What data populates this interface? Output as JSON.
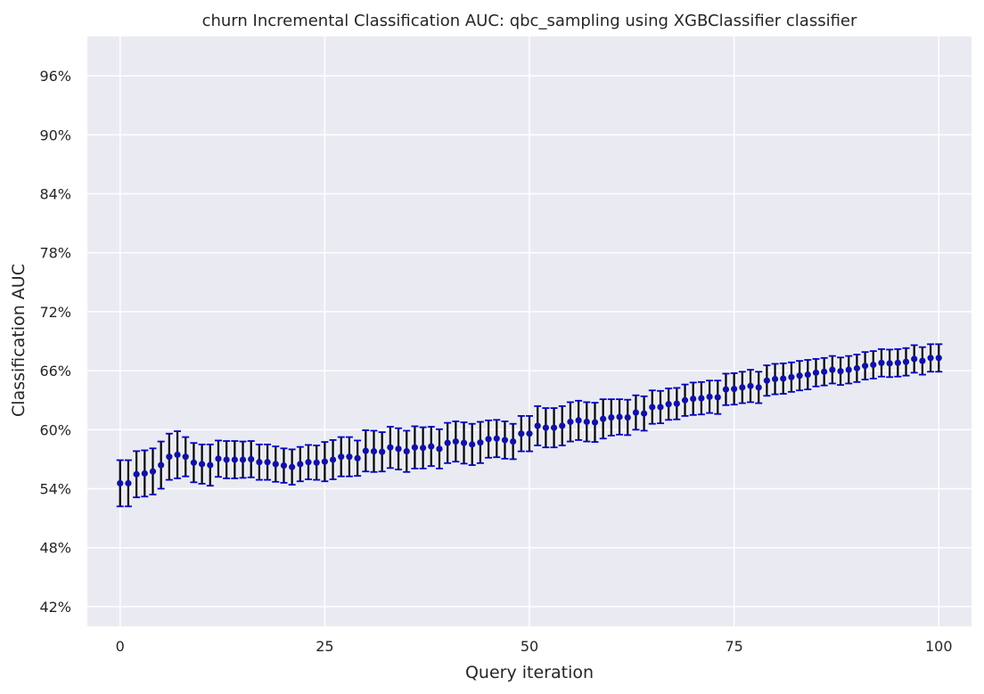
{
  "chart_data": {
    "type": "scatter",
    "title": "churn Incremental Classification AUC: qbc_sampling using XGBClassifier classifier",
    "xlabel": "Query iteration",
    "ylabel": "Classification AUC",
    "xlim": [
      -4,
      104
    ],
    "ylim": [
      0.4,
      1.0
    ],
    "xticks": [
      0,
      25,
      50,
      75,
      100
    ],
    "xtick_labels": [
      "0",
      "25",
      "50",
      "75",
      "100"
    ],
    "yticks": [
      0.42,
      0.48,
      0.54,
      0.6,
      0.66,
      0.72,
      0.78,
      0.84,
      0.9,
      0.96
    ],
    "ytick_labels": [
      "42%",
      "48%",
      "54%",
      "60%",
      "66%",
      "72%",
      "78%",
      "84%",
      "90%",
      "96%"
    ],
    "grid": true,
    "colors": {
      "background": "#eaeaf2",
      "grid": "#ffffff",
      "marker": "#1010a8",
      "errorbar": "#000000",
      "cap": "#0000cc"
    },
    "series": [
      {
        "x": [
          0,
          1,
          2,
          3,
          4,
          5,
          6,
          7,
          8,
          9,
          10,
          11,
          12,
          13,
          14,
          15,
          16,
          17,
          18,
          19,
          20,
          21,
          22,
          23,
          24,
          25,
          26,
          27,
          28,
          29,
          30,
          31,
          32,
          33,
          34,
          35,
          36,
          37,
          38,
          39,
          40,
          41,
          42,
          43,
          44,
          45,
          46,
          47,
          48,
          49,
          50,
          51,
          52,
          53,
          54,
          55,
          56,
          57,
          58,
          59,
          60,
          61,
          62,
          63,
          64,
          65,
          66,
          67,
          68,
          69,
          70,
          71,
          72,
          73,
          74,
          75,
          76,
          77,
          78,
          79,
          80,
          81,
          82,
          83,
          84,
          85,
          86,
          87,
          88,
          89,
          90,
          91,
          92,
          93,
          94,
          95,
          96,
          97,
          98,
          99,
          100
        ],
        "y": [
          0.5455,
          0.5455,
          0.5547,
          0.5555,
          0.5575,
          0.564,
          0.5725,
          0.5745,
          0.5725,
          0.5665,
          0.565,
          0.564,
          0.5705,
          0.5695,
          0.5695,
          0.5695,
          0.57,
          0.567,
          0.567,
          0.565,
          0.5635,
          0.562,
          0.565,
          0.567,
          0.5665,
          0.5675,
          0.5695,
          0.5725,
          0.5725,
          0.571,
          0.5785,
          0.578,
          0.5775,
          0.582,
          0.5805,
          0.578,
          0.582,
          0.5815,
          0.583,
          0.5805,
          0.5865,
          0.588,
          0.5865,
          0.585,
          0.587,
          0.5905,
          0.591,
          0.5895,
          0.588,
          0.596,
          0.596,
          0.604,
          0.602,
          0.602,
          0.604,
          0.608,
          0.6095,
          0.608,
          0.6075,
          0.611,
          0.6125,
          0.613,
          0.6125,
          0.6175,
          0.6165,
          0.623,
          0.623,
          0.626,
          0.6265,
          0.63,
          0.6315,
          0.632,
          0.6335,
          0.633,
          0.641,
          0.6415,
          0.643,
          0.6445,
          0.643,
          0.65,
          0.6515,
          0.652,
          0.6535,
          0.655,
          0.656,
          0.658,
          0.659,
          0.661,
          0.6595,
          0.661,
          0.6625,
          0.665,
          0.666,
          0.668,
          0.6675,
          0.668,
          0.669,
          0.672,
          0.67,
          0.673,
          0.673
        ],
        "err": [
          0.0235,
          0.0235,
          0.0235,
          0.0235,
          0.0235,
          0.024,
          0.0235,
          0.024,
          0.02,
          0.02,
          0.02,
          0.021,
          0.0185,
          0.019,
          0.019,
          0.0185,
          0.0185,
          0.018,
          0.018,
          0.018,
          0.0175,
          0.018,
          0.0175,
          0.0175,
          0.0175,
          0.02,
          0.02,
          0.02,
          0.02,
          0.018,
          0.021,
          0.021,
          0.02,
          0.021,
          0.021,
          0.021,
          0.0215,
          0.021,
          0.02,
          0.02,
          0.0205,
          0.0205,
          0.021,
          0.021,
          0.021,
          0.019,
          0.019,
          0.019,
          0.018,
          0.018,
          0.018,
          0.02,
          0.02,
          0.02,
          0.02,
          0.02,
          0.02,
          0.02,
          0.02,
          0.02,
          0.0185,
          0.018,
          0.018,
          0.0175,
          0.0175,
          0.017,
          0.0165,
          0.016,
          0.016,
          0.016,
          0.0165,
          0.0165,
          0.0165,
          0.017,
          0.016,
          0.016,
          0.016,
          0.0165,
          0.016,
          0.0155,
          0.0155,
          0.0155,
          0.015,
          0.015,
          0.015,
          0.014,
          0.014,
          0.014,
          0.014,
          0.014,
          0.014,
          0.014,
          0.014,
          0.014,
          0.014,
          0.014,
          0.014,
          0.014,
          0.014,
          0.014,
          0.014
        ]
      }
    ]
  }
}
